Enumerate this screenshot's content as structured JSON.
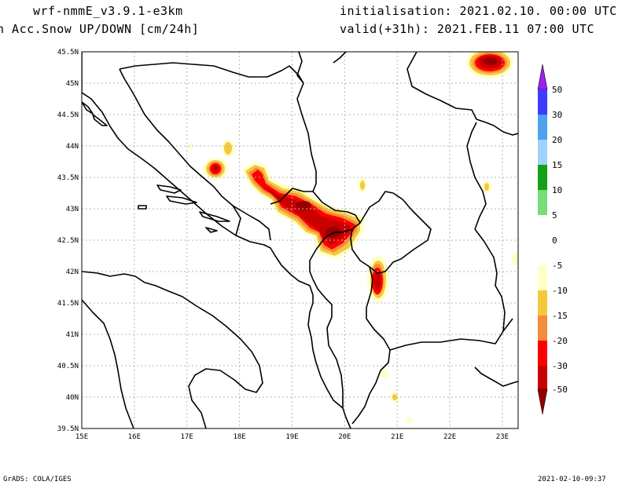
{
  "header": {
    "model": "wrf-nmmE_v3.9.1-e3km",
    "variable": "n Acc.Snow UP/DOWN [cm/24h]",
    "init": "initialisation: 2021.02.10.  00:00 UTC",
    "valid": "valid(+31h): 2021.FEB.11 07:00 UTC"
  },
  "map": {
    "lon_ticks": [
      "15E",
      "16E",
      "17E",
      "18E",
      "19E",
      "20E",
      "21E",
      "22E",
      "23E"
    ],
    "lat_ticks": [
      "39.5N",
      "40N",
      "40.5N",
      "41N",
      "41.5N",
      "42N",
      "42.5N",
      "43N",
      "43.5N",
      "44N",
      "44.5N",
      "45N",
      "45.5N"
    ],
    "lon_range": [
      15,
      23.3
    ],
    "lat_range": [
      39.5,
      45.5
    ],
    "grid": true
  },
  "colorbar": {
    "labels": [
      "50",
      "30",
      "20",
      "15",
      "10",
      "5",
      "0",
      "-5",
      "-10",
      "-15",
      "-20",
      "-30",
      "-50"
    ],
    "colors": {
      "above50": "#a020f0",
      "30_50": "#3c3cff",
      "20_30": "#50a0f0",
      "15_20": "#a0d2ff",
      "10_15": "#14a014",
      "5_10": "#78dc78",
      "0_5": "#ffffff",
      "m5_0": "#ffffff",
      "m10_m5": "#ffffc8",
      "m15_m10": "#f5c83c",
      "m20_m15": "#f58c3c",
      "m30_m20": "#ff0000",
      "m50_m30": "#c80000",
      "below_m50": "#960000"
    }
  },
  "footer": {
    "left": "GrADS: COLA/IGES",
    "right": "2021-02-10-09:37"
  }
}
